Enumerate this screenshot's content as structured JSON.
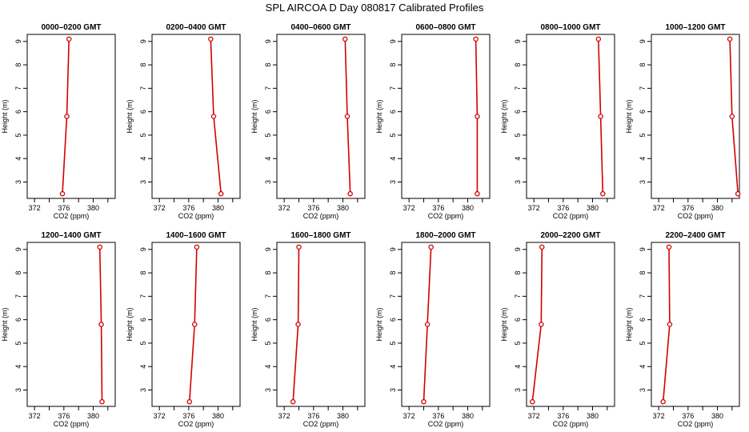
{
  "title": "SPL AIRCOA D  Day 080817  Calibrated Profiles",
  "chart_data": [
    {
      "type": "line",
      "title": "0000–0200 GMT",
      "xlabel": "CO2 (ppm)",
      "ylabel": "Height (m)",
      "xlim": [
        371,
        383
      ],
      "ylim": [
        2.3,
        9.3
      ],
      "xticks": [
        "372",
        "376",
        "380"
      ],
      "yticks": [
        "3",
        "4",
        "5",
        "6",
        "7",
        "8",
        "9"
      ],
      "series": [
        {
          "x": [
            375.8,
            376.4,
            376.7
          ],
          "y": [
            2.5,
            5.8,
            9.1
          ]
        }
      ]
    },
    {
      "type": "line",
      "title": "0200–0400 GMT",
      "xlabel": "CO2 (ppm)",
      "ylabel": "Height (m)",
      "xlim": [
        371,
        383
      ],
      "ylim": [
        2.3,
        9.3
      ],
      "xticks": [
        "372",
        "376",
        "380"
      ],
      "yticks": [
        "3",
        "4",
        "5",
        "6",
        "7",
        "8",
        "9"
      ],
      "series": [
        {
          "x": [
            380.4,
            379.4,
            379.0
          ],
          "y": [
            2.5,
            5.8,
            9.1
          ]
        }
      ]
    },
    {
      "type": "line",
      "title": "0400–0600 GMT",
      "xlabel": "CO2 (ppm)",
      "ylabel": "Height (m)",
      "xlim": [
        371,
        383
      ],
      "ylim": [
        2.3,
        9.3
      ],
      "xticks": [
        "372",
        "376",
        "380"
      ],
      "yticks": [
        "3",
        "4",
        "5",
        "6",
        "7",
        "8",
        "9"
      ],
      "series": [
        {
          "x": [
            381.0,
            380.6,
            380.3
          ],
          "y": [
            2.5,
            5.8,
            9.1
          ]
        }
      ]
    },
    {
      "type": "line",
      "title": "0600–0800 GMT",
      "xlabel": "CO2 (ppm)",
      "ylabel": "Height (m)",
      "xlim": [
        371,
        383
      ],
      "ylim": [
        2.3,
        9.3
      ],
      "xticks": [
        "372",
        "376",
        "380"
      ],
      "yticks": [
        "3",
        "4",
        "5",
        "6",
        "7",
        "8",
        "9"
      ],
      "series": [
        {
          "x": [
            381.3,
            381.3,
            381.1
          ],
          "y": [
            2.5,
            5.8,
            9.1
          ]
        }
      ]
    },
    {
      "type": "line",
      "title": "0800–1000 GMT",
      "xlabel": "CO2 (ppm)",
      "ylabel": "Height (m)",
      "xlim": [
        371,
        383
      ],
      "ylim": [
        2.3,
        9.3
      ],
      "xticks": [
        "372",
        "376",
        "380"
      ],
      "yticks": [
        "3",
        "4",
        "5",
        "6",
        "7",
        "8",
        "9"
      ],
      "series": [
        {
          "x": [
            381.4,
            381.1,
            380.8
          ],
          "y": [
            2.5,
            5.8,
            9.1
          ]
        }
      ]
    },
    {
      "type": "line",
      "title": "1000–1200 GMT",
      "xlabel": "CO2 (ppm)",
      "ylabel": "Height (m)",
      "xlim": [
        371,
        383
      ],
      "ylim": [
        2.3,
        9.3
      ],
      "xticks": [
        "372",
        "376",
        "380"
      ],
      "yticks": [
        "3",
        "4",
        "5",
        "6",
        "7",
        "8",
        "9"
      ],
      "series": [
        {
          "x": [
            382.8,
            382.0,
            381.7
          ],
          "y": [
            2.5,
            5.8,
            9.1
          ]
        }
      ]
    },
    {
      "type": "line",
      "title": "1200–1400 GMT",
      "xlabel": "CO2 (ppm)",
      "ylabel": "Height (m)",
      "xlim": [
        371,
        383
      ],
      "ylim": [
        2.3,
        9.3
      ],
      "xticks": [
        "372",
        "376",
        "380"
      ],
      "yticks": [
        "3",
        "4",
        "5",
        "6",
        "7",
        "8",
        "9"
      ],
      "series": [
        {
          "x": [
            381.2,
            381.1,
            380.9
          ],
          "y": [
            2.5,
            5.8,
            9.1
          ]
        }
      ]
    },
    {
      "type": "line",
      "title": "1400–1600 GMT",
      "xlabel": "CO2 (ppm)",
      "ylabel": "Height (m)",
      "xlim": [
        371,
        383
      ],
      "ylim": [
        2.3,
        9.3
      ],
      "xticks": [
        "372",
        "376",
        "380"
      ],
      "yticks": [
        "3",
        "4",
        "5",
        "6",
        "7",
        "8",
        "9"
      ],
      "series": [
        {
          "x": [
            376.1,
            376.8,
            377.1
          ],
          "y": [
            2.5,
            5.8,
            9.1
          ]
        }
      ]
    },
    {
      "type": "line",
      "title": "1600–1800 GMT",
      "xlabel": "CO2 (ppm)",
      "ylabel": "Height (m)",
      "xlim": [
        371,
        383
      ],
      "ylim": [
        2.3,
        9.3
      ],
      "xticks": [
        "372",
        "376",
        "380"
      ],
      "yticks": [
        "3",
        "4",
        "5",
        "6",
        "7",
        "8",
        "9"
      ],
      "series": [
        {
          "x": [
            373.2,
            373.9,
            374.0
          ],
          "y": [
            2.5,
            5.8,
            9.1
          ]
        }
      ]
    },
    {
      "type": "line",
      "title": "1800–2000 GMT",
      "xlabel": "CO2 (ppm)",
      "ylabel": "Height (m)",
      "xlim": [
        371,
        383
      ],
      "ylim": [
        2.3,
        9.3
      ],
      "xticks": [
        "372",
        "376",
        "380"
      ],
      "yticks": [
        "3",
        "4",
        "5",
        "6",
        "7",
        "8",
        "9"
      ],
      "series": [
        {
          "x": [
            374.0,
            374.5,
            375.0
          ],
          "y": [
            2.5,
            5.8,
            9.1
          ]
        }
      ]
    },
    {
      "type": "line",
      "title": "2000–2200 GMT",
      "xlabel": "CO2 (ppm)",
      "ylabel": "Height (m)",
      "xlim": [
        371,
        383
      ],
      "ylim": [
        2.3,
        9.3
      ],
      "xticks": [
        "372",
        "376",
        "380"
      ],
      "yticks": [
        "3",
        "4",
        "5",
        "6",
        "7",
        "8",
        "9"
      ],
      "series": [
        {
          "x": [
            371.8,
            373.0,
            373.1
          ],
          "y": [
            2.5,
            5.8,
            9.1
          ]
        }
      ]
    },
    {
      "type": "line",
      "title": "2200–2400 GMT",
      "xlabel": "CO2 (ppm)",
      "ylabel": "Height (m)",
      "xlim": [
        371,
        383
      ],
      "ylim": [
        2.3,
        9.3
      ],
      "xticks": [
        "372",
        "376",
        "380"
      ],
      "yticks": [
        "3",
        "4",
        "5",
        "6",
        "7",
        "8",
        "9"
      ],
      "series": [
        {
          "x": [
            372.6,
            373.5,
            373.4
          ],
          "y": [
            2.5,
            5.8,
            9.1
          ]
        }
      ]
    }
  ],
  "colors": {
    "series": "#d40000",
    "axis": "#000000"
  }
}
